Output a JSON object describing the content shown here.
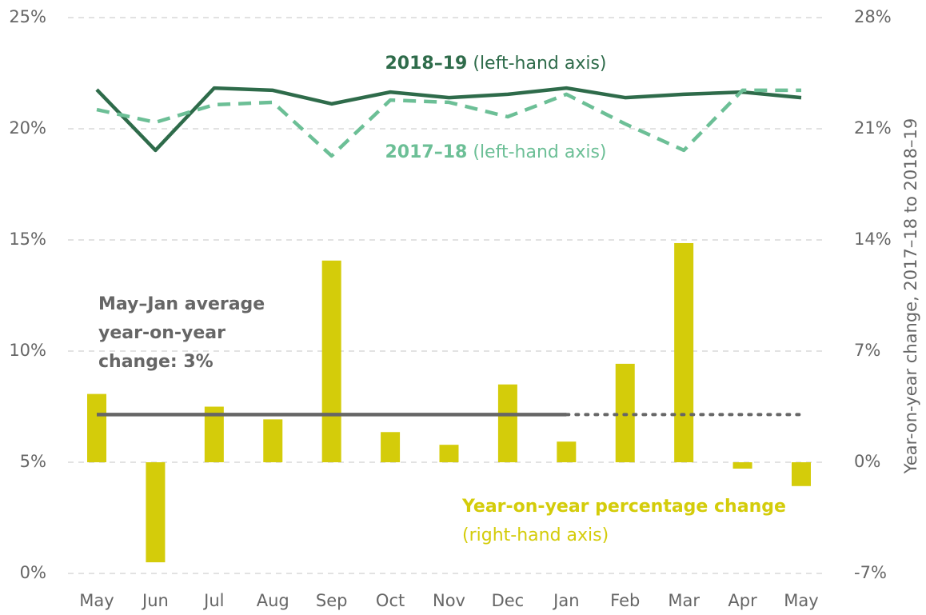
{
  "chart_data": {
    "type": "bar_line",
    "categories": [
      "May",
      "Jun",
      "Jul",
      "Aug",
      "Sep",
      "Oct",
      "Nov",
      "Dec",
      "Jan",
      "Feb",
      "Mar",
      "Apr",
      "May"
    ],
    "series": [
      {
        "name": "2018–19",
        "note": "(left-hand axis)",
        "type": "line",
        "axis": "y",
        "color": "#2e6b4a",
        "dashed": false,
        "values": [
          21.76,
          19.03,
          21.83,
          21.73,
          21.12,
          21.65,
          21.4,
          21.55,
          21.83,
          21.4,
          21.55,
          21.65,
          21.4
        ]
      },
      {
        "name": "2017–18",
        "note": "(left-hand axis)",
        "type": "line",
        "axis": "y",
        "color": "#6cbf96",
        "dashed": true,
        "values": [
          20.86,
          20.29,
          21.08,
          21.19,
          18.78,
          21.29,
          21.19,
          20.54,
          21.55,
          20.22,
          19.03,
          21.73,
          21.73
        ]
      },
      {
        "name": "Year-on-year percentage change",
        "note": "(right-hand axis)",
        "type": "bar",
        "axis": "y2",
        "color": "#d4cc0a",
        "values": [
          4.3,
          -6.3,
          3.5,
          2.7,
          12.7,
          1.9,
          1.1,
          4.9,
          1.3,
          6.2,
          13.8,
          -0.4,
          -1.5
        ]
      }
    ],
    "average": {
      "value": 3,
      "axis": "y2",
      "color": "#666666",
      "solid_through": 8,
      "label": [
        "May–Jan average",
        "year-on-year",
        "change: 3%"
      ]
    },
    "ylim": [
      0,
      25
    ],
    "yticks": [
      {
        "value": 0,
        "label": "0%"
      },
      {
        "value": 5,
        "label": "5%"
      },
      {
        "value": 10,
        "label": "10%"
      },
      {
        "value": 15,
        "label": "15%"
      },
      {
        "value": 20,
        "label": "20%"
      },
      {
        "value": 25,
        "label": "25%"
      }
    ],
    "y2lim": [
      -7,
      28
    ],
    "y2ticks": [
      {
        "value": -7,
        "label": "-7%"
      },
      {
        "value": 0,
        "label": "0%"
      },
      {
        "value": 7,
        "label": "7%"
      },
      {
        "value": 14,
        "label": "14%"
      },
      {
        "value": 21,
        "label": "21%"
      },
      {
        "value": 28,
        "label": "28%"
      }
    ],
    "y2label": "Year-on-year change, 2017–18 to 2018–19",
    "grid": true
  }
}
